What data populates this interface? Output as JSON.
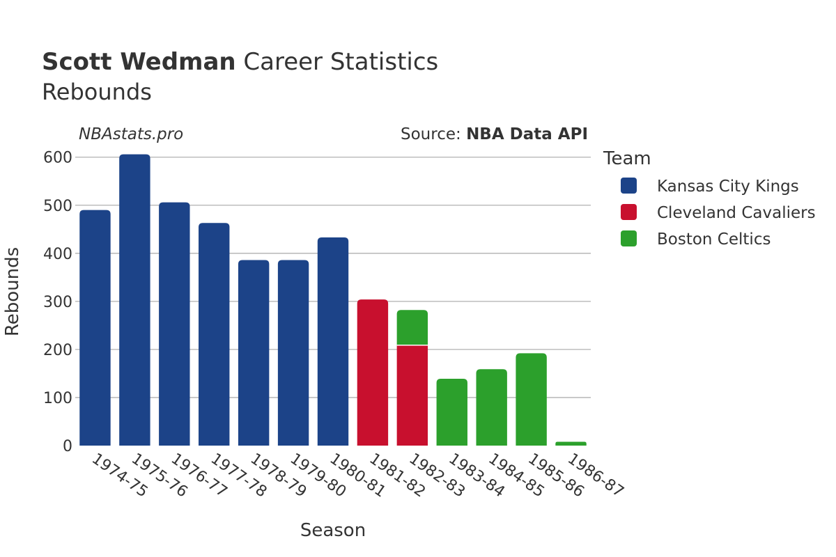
{
  "chart_data": {
    "type": "bar",
    "stacked": true,
    "title_bold": "Scott Wedman",
    "title_rest": " Career Statistics",
    "subtitle": "Rebounds",
    "watermark": "NBAstats.pro",
    "source_prefix": "Source: ",
    "source_name": "NBA Data API",
    "xlabel": "Season",
    "ylabel": "Rebounds",
    "ylim": [
      0,
      630
    ],
    "yticks": [
      0,
      100,
      200,
      300,
      400,
      500,
      600
    ],
    "grid": true,
    "legend_title": "Team",
    "legend_position": "right",
    "categories": [
      "1974-75",
      "1975-76",
      "1976-77",
      "1977-78",
      "1978-79",
      "1979-80",
      "1980-81",
      "1981-82",
      "1982-83",
      "1983-84",
      "1984-85",
      "1985-86",
      "1986-87"
    ],
    "series": [
      {
        "name": "Kansas City Kings",
        "color": "#1c4388",
        "values": [
          490,
          606,
          506,
          463,
          386,
          386,
          433,
          0,
          0,
          0,
          0,
          0,
          0
        ]
      },
      {
        "name": "Cleveland Cavaliers",
        "color": "#c8102e",
        "values": [
          0,
          0,
          0,
          0,
          0,
          0,
          0,
          304,
          209,
          0,
          0,
          0,
          0
        ]
      },
      {
        "name": "Boston Celtics",
        "color": "#2ca02c",
        "values": [
          0,
          0,
          0,
          0,
          0,
          0,
          0,
          0,
          73,
          139,
          159,
          192,
          8
        ]
      }
    ]
  }
}
